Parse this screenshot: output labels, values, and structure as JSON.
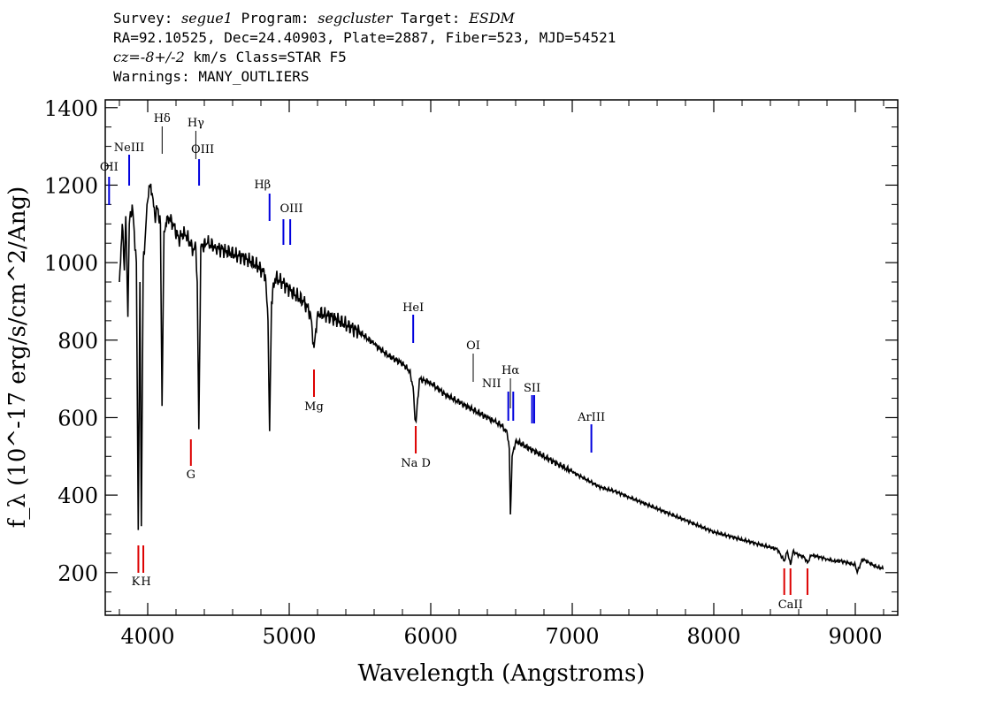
{
  "header": {
    "survey_label": "Survey:",
    "survey": "segue1",
    "program_label": "Program:",
    "program": "segcluster",
    "target_label": "Target:",
    "target": "ESDM",
    "line2": "RA=92.10525, Dec=24.40903, Plate=2887, Fiber=523, MJD=54521",
    "cz": "cz=-8+/-2",
    "cz_rest": " km/s Class=STAR F5",
    "warnings": "Warnings: MANY_OUTLIERS"
  },
  "chart_data": {
    "type": "line",
    "title": "",
    "xlabel": "Wavelength (Angstroms)",
    "ylabel": "f_λ (10^-17 erg/s/cm^2/Ang)",
    "xlim": [
      3700,
      9300
    ],
    "ylim": [
      90,
      1420
    ],
    "xticks": [
      4000,
      5000,
      6000,
      7000,
      8000,
      9000
    ],
    "yticks": [
      200,
      400,
      600,
      800,
      1000,
      1200,
      1400
    ],
    "grid": false,
    "series": [
      {
        "color": "#000000",
        "x": [
          3800,
          3820,
          3835,
          3845,
          3860,
          3870,
          3890,
          3905,
          3920,
          3933,
          3945,
          3955,
          3968,
          3980,
          3995,
          4010,
          4030,
          4050,
          4070,
          4090,
          4101,
          4115,
          4140,
          4180,
          4220,
          4260,
          4300,
          4320,
          4340,
          4350,
          4361,
          4375,
          4420,
          4480,
          4550,
          4620,
          4700,
          4780,
          4830,
          4850,
          4861,
          4875,
          4900,
          4950,
          5000,
          5100,
          5150,
          5175,
          5200,
          5300,
          5400,
          5500,
          5600,
          5700,
          5800,
          5850,
          5875,
          5889,
          5896,
          5920,
          6000,
          6100,
          6200,
          6300,
          6400,
          6450,
          6500,
          6540,
          6555,
          6563,
          6575,
          6600,
          6700,
          6800,
          6900,
          7000,
          7100,
          7200,
          7300,
          7400,
          7500,
          7600,
          7700,
          7800,
          7900,
          8000,
          8100,
          8200,
          8300,
          8400,
          8450,
          8498,
          8520,
          8542,
          8560,
          8600,
          8640,
          8662,
          8690,
          8750,
          8800,
          8850,
          8900,
          9000,
          9014,
          9050,
          9100,
          9150,
          9200
        ],
        "y": [
          950,
          1100,
          980,
          1120,
          860,
          1100,
          1150,
          1080,
          1000,
          310,
          950,
          320,
          1000,
          1050,
          1150,
          1200,
          1180,
          1120,
          1140,
          1100,
          630,
          1080,
          1120,
          1100,
          1060,
          1080,
          1050,
          1030,
          1040,
          950,
          570,
          1040,
          1050,
          1040,
          1030,
          1020,
          1010,
          990,
          970,
          850,
          565,
          900,
          960,
          950,
          930,
          900,
          870,
          780,
          870,
          860,
          840,
          820,
          790,
          760,
          740,
          720,
          680,
          595,
          590,
          700,
          690,
          660,
          640,
          620,
          600,
          590,
          580,
          560,
          520,
          350,
          500,
          540,
          520,
          500,
          480,
          460,
          440,
          420,
          410,
          395,
          380,
          365,
          350,
          335,
          320,
          305,
          295,
          285,
          275,
          265,
          260,
          230,
          255,
          220,
          255,
          245,
          240,
          225,
          245,
          240,
          235,
          230,
          230,
          220,
          200,
          235,
          225,
          215,
          210
        ]
      }
    ],
    "annotations": {
      "emission_lines": [
        {
          "label": "OII",
          "x": 3727
        },
        {
          "label": "NeIII",
          "x": 3869
        },
        {
          "label": "OIII",
          "x": 4363
        },
        {
          "label": "Hβ",
          "x": 4861
        },
        {
          "label": "OIII",
          "x": 4959
        },
        {
          "label": "OIII",
          "x": 5007
        },
        {
          "label": "HeI",
          "x": 5876
        },
        {
          "label": "NII",
          "x": 6548
        },
        {
          "label": "NII",
          "x": 6583
        },
        {
          "label": "SII",
          "x": 6716
        },
        {
          "label": "SII",
          "x": 6731
        },
        {
          "label": "ArIII",
          "x": 7135
        }
      ],
      "balmer_lines": [
        {
          "label": "Hδ",
          "x": 4102
        },
        {
          "label": "Hγ",
          "x": 4340
        },
        {
          "label": "OI",
          "x": 6300
        },
        {
          "label": "Hα",
          "x": 6563
        }
      ],
      "absorption_lines": [
        {
          "label": "K",
          "x": 3934
        },
        {
          "label": "H",
          "x": 3969
        },
        {
          "label": "G",
          "x": 4305
        },
        {
          "label": "Mg",
          "x": 5175
        },
        {
          "label": "Na D",
          "x": 5894
        },
        {
          "label": "CaII",
          "x": 8498
        },
        {
          "label": "CaII",
          "x": 8542
        },
        {
          "label": "CaII",
          "x": 8662
        }
      ],
      "colors": {
        "emission": "#0000dd",
        "balmer": "#000000",
        "absorption": "#dd0000"
      }
    }
  }
}
